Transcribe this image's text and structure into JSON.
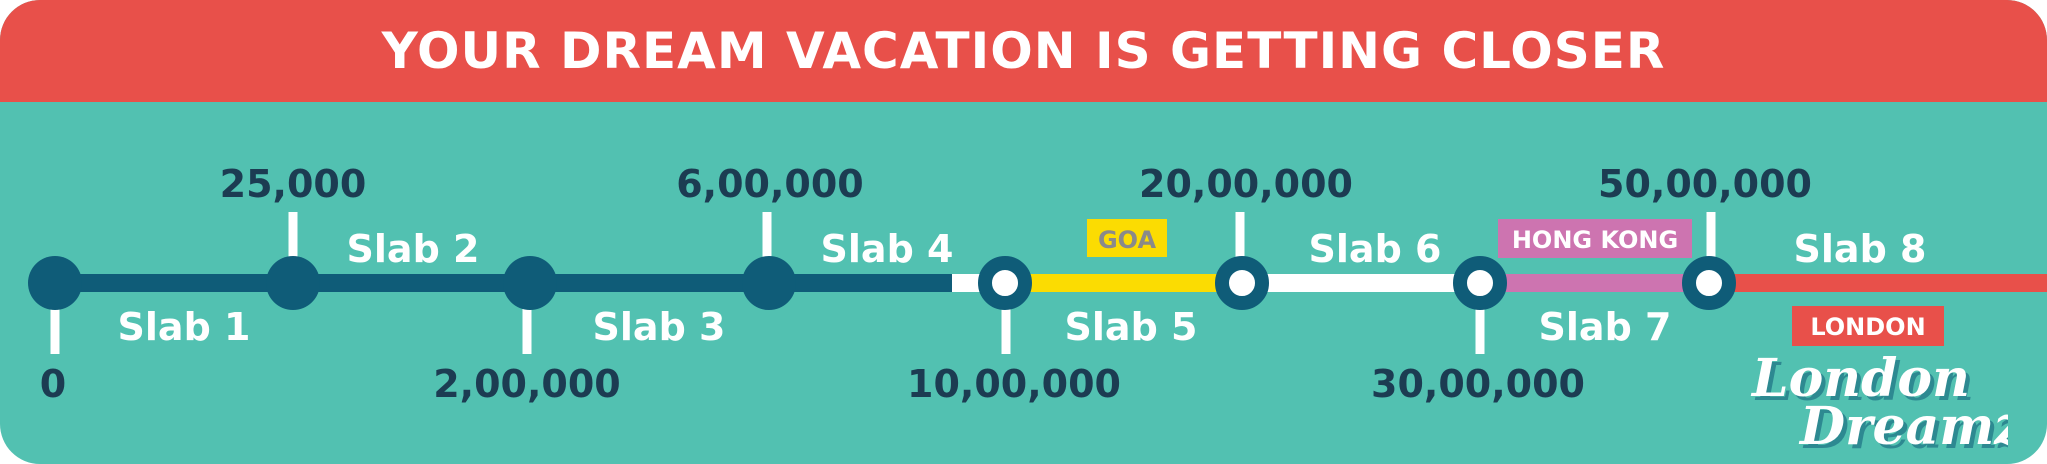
{
  "banner": {
    "title": "YOUR DREAM VACATION IS GETTING CLOSER"
  },
  "colors": {
    "background": "#52c1b1",
    "banner": "#e8504a",
    "navy": "#0f5c78",
    "text_dark": "#1c3c52",
    "white": "#ffffff",
    "goa": "#fbdc02",
    "hong_kong": "#cd74b0",
    "london": "#e8504a"
  },
  "milestones": [
    {
      "value": "0",
      "position": "below",
      "style": "filled"
    },
    {
      "value": "25,000",
      "position": "above",
      "style": "filled"
    },
    {
      "value": "2,00,000",
      "position": "below",
      "style": "filled"
    },
    {
      "value": "6,00,000",
      "position": "above",
      "style": "filled"
    },
    {
      "value": "10,00,000",
      "position": "below",
      "style": "ring"
    },
    {
      "value": "20,00,000",
      "position": "above",
      "style": "ring"
    },
    {
      "value": "30,00,000",
      "position": "below",
      "style": "ring"
    },
    {
      "value": "50,00,000",
      "position": "above",
      "style": "ring"
    }
  ],
  "slabs": [
    {
      "label": "Slab 1",
      "position": "below"
    },
    {
      "label": "Slab 2",
      "position": "above"
    },
    {
      "label": "Slab 3",
      "position": "below"
    },
    {
      "label": "Slab 4",
      "position": "above"
    },
    {
      "label": "Slab 5",
      "position": "below"
    },
    {
      "label": "Slab 6",
      "position": "above"
    },
    {
      "label": "Slab 7",
      "position": "below"
    },
    {
      "label": "Slab 8",
      "position": "above"
    }
  ],
  "destinations": [
    {
      "name": "GOA",
      "slab": "Slab 5",
      "color": "#fbdc02",
      "text_color": "#8a8a8a"
    },
    {
      "name": "HONG KONG",
      "slab": "Slab 7",
      "color": "#cd74b0",
      "text_color": "#ffffff"
    },
    {
      "name": "LONDON",
      "slab": "Slab 8",
      "color": "#e8504a",
      "text_color": "#ffffff"
    }
  ],
  "logo": {
    "line1": "London",
    "line2": "Dreamz"
  }
}
